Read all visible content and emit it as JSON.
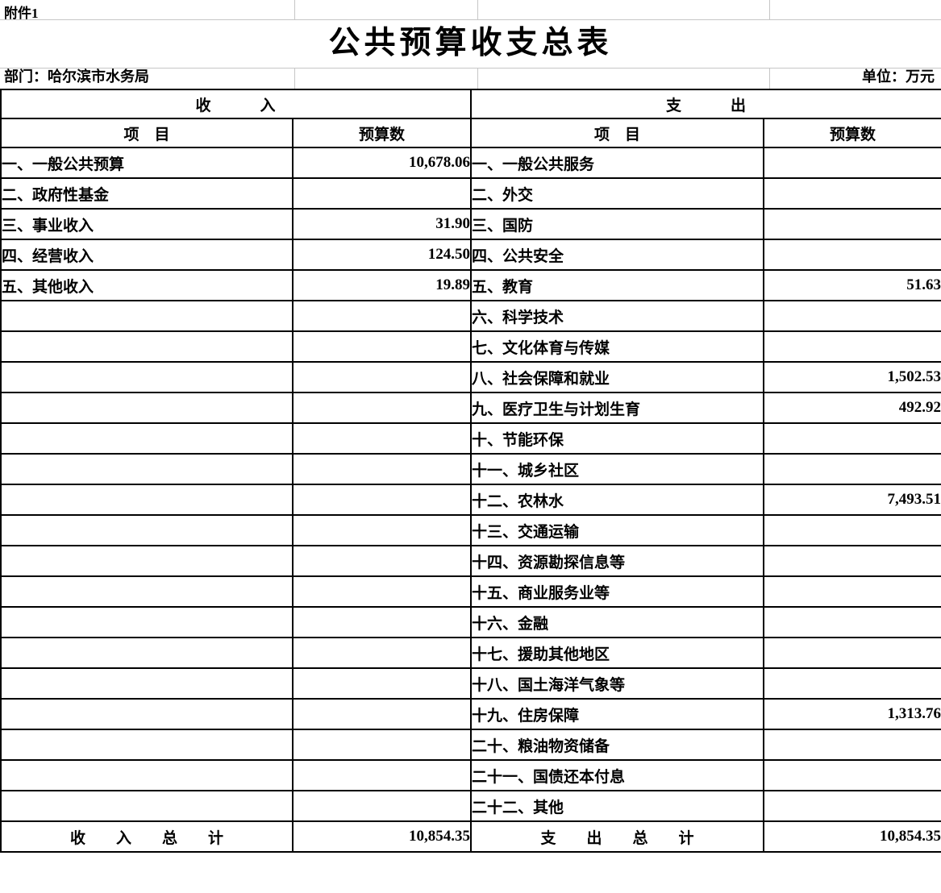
{
  "page": {
    "attachment_label": "附件1",
    "title": "公共预算收支总表",
    "department_label": "部门：哈尔滨市水务局",
    "unit_label": "单位：万元"
  },
  "table": {
    "income": {
      "section_header": "收　　　入",
      "item_header": "项　目",
      "value_header": "预算数",
      "rows": [
        {
          "item": "一、一般公共预算",
          "value": "10,678.06"
        },
        {
          "item": "二、政府性基金",
          "value": ""
        },
        {
          "item": "三、事业收入",
          "value": "31.90"
        },
        {
          "item": "四、经营收入",
          "value": "124.50"
        },
        {
          "item": "五、其他收入",
          "value": "19.89"
        },
        {
          "item": "",
          "value": ""
        },
        {
          "item": "",
          "value": ""
        },
        {
          "item": "",
          "value": ""
        },
        {
          "item": "",
          "value": ""
        },
        {
          "item": "",
          "value": ""
        },
        {
          "item": "",
          "value": ""
        },
        {
          "item": "",
          "value": ""
        },
        {
          "item": "",
          "value": ""
        },
        {
          "item": "",
          "value": ""
        },
        {
          "item": "",
          "value": ""
        },
        {
          "item": "",
          "value": ""
        },
        {
          "item": "",
          "value": ""
        },
        {
          "item": "",
          "value": ""
        },
        {
          "item": "",
          "value": ""
        },
        {
          "item": "",
          "value": ""
        },
        {
          "item": "",
          "value": ""
        },
        {
          "item": "",
          "value": ""
        }
      ],
      "total_label": "收　　入　　总　　计",
      "total_value": "10,854.35"
    },
    "expense": {
      "section_header": "支　　　出",
      "item_header": "项　目",
      "value_header": "预算数",
      "rows": [
        {
          "item": "一、一般公共服务",
          "value": ""
        },
        {
          "item": "二、外交",
          "value": ""
        },
        {
          "item": "三、国防",
          "value": ""
        },
        {
          "item": "四、公共安全",
          "value": ""
        },
        {
          "item": "五、教育",
          "value": "51.63"
        },
        {
          "item": "六、科学技术",
          "value": ""
        },
        {
          "item": "七、文化体育与传媒",
          "value": ""
        },
        {
          "item": "八、社会保障和就业",
          "value": "1,502.53"
        },
        {
          "item": "九、医疗卫生与计划生育",
          "value": "492.92"
        },
        {
          "item": "十、节能环保",
          "value": ""
        },
        {
          "item": "十一、城乡社区",
          "value": ""
        },
        {
          "item": "十二、农林水",
          "value": "7,493.51"
        },
        {
          "item": "十三、交通运输",
          "value": ""
        },
        {
          "item": "十四、资源勘探信息等",
          "value": ""
        },
        {
          "item": "十五、商业服务业等",
          "value": ""
        },
        {
          "item": "十六、金融",
          "value": ""
        },
        {
          "item": "十七、援助其他地区",
          "value": ""
        },
        {
          "item": "十八、国土海洋气象等",
          "value": ""
        },
        {
          "item": "十九、住房保障",
          "value": "1,313.76"
        },
        {
          "item": "二十、粮油物资储备",
          "value": ""
        },
        {
          "item": "二十一、国债还本付息",
          "value": ""
        },
        {
          "item": "二十二、其他",
          "value": ""
        }
      ],
      "total_label": "支　　出　　总　　计",
      "total_value": "10,854.35"
    }
  },
  "colors": {
    "background": "#ffffff",
    "text": "#000000",
    "table_border": "#000000",
    "spreadsheet_gridline": "#c6c6c6"
  }
}
